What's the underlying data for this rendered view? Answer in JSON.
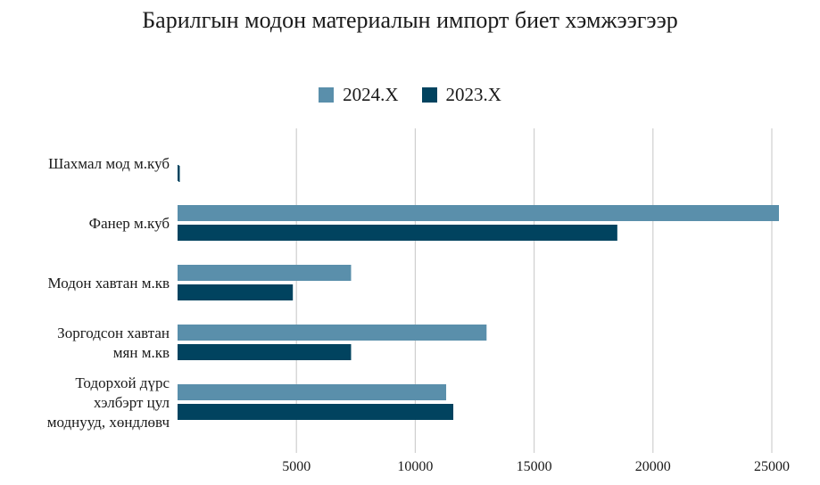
{
  "chart_data": {
    "type": "bar",
    "orientation": "horizontal",
    "title": "Барилгын модон материалын импорт биет хэмжээгээр",
    "categories": [
      "Шахмал мод м.куб",
      "Фанер м.куб",
      "Модон хавтан м.кв",
      "Зоргодсон хавтан мян м.кв",
      "Тодорхой дүрс хэлбэрт цул моднууд, хөндлөвч"
    ],
    "category_lines": [
      [
        "Шахмал мод м.куб"
      ],
      [
        "Фанер м.куб"
      ],
      [
        "Модон хавтан м.кв"
      ],
      [
        "Зоргодсон хавтан",
        "мян м.кв"
      ],
      [
        "Тодорхой дүрс",
        "хэлбэрт цул",
        "моднууд, хөндлөвч"
      ]
    ],
    "series": [
      {
        "name": "2024.X",
        "color": "#5a8fab",
        "values": [
          0,
          25300,
          7300,
          13000,
          11300
        ]
      },
      {
        "name": "2023.X",
        "color": "#01435f",
        "values": [
          50,
          18500,
          4850,
          7300,
          11600
        ]
      }
    ],
    "xlim": [
      0,
      26000
    ],
    "xticks": [
      5000,
      10000,
      15000,
      20000,
      25000
    ],
    "xtick_labels": [
      "5000",
      "10000",
      "15000",
      "20000",
      "25000"
    ],
    "grid": true,
    "legend_position": "top-center"
  }
}
